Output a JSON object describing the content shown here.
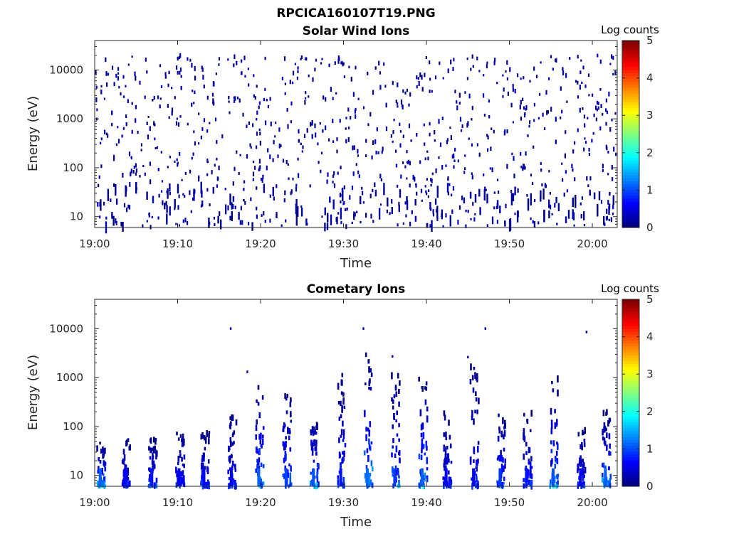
{
  "title": "RPCICA160107T19.PNG",
  "chart_data": [
    {
      "type": "heatmap",
      "title": "Solar Wind Ions",
      "xlabel": "Time",
      "ylabel": "Energy (eV)",
      "x_ticks": [
        "19:00",
        "19:10",
        "19:20",
        "19:30",
        "19:40",
        "19:50",
        "20:00"
      ],
      "x_range": [
        "19:00",
        "20:03"
      ],
      "y_scale": "log",
      "y_ticks": [
        "10",
        "100",
        "1000",
        "10000"
      ],
      "y_range": [
        6,
        40000
      ],
      "colorbar": {
        "label": "Log counts",
        "ticks": [
          "0",
          "1",
          "2",
          "3",
          "4",
          "5"
        ],
        "range": [
          0,
          5
        ],
        "colormap": "jet"
      },
      "description_of_values": "Sparse scattered pixels at log counts about 0-0.3 (dark blue) across all energies 6 eV to 20000 eV, with denser streaks below 40 eV; nearly all values near 0."
    },
    {
      "type": "heatmap",
      "title": "Cometary Ions",
      "xlabel": "Time",
      "ylabel": "Energy (eV)",
      "x_ticks": [
        "19:00",
        "19:10",
        "19:20",
        "19:30",
        "19:40",
        "19:50",
        "20:00"
      ],
      "x_range": [
        "19:00",
        "20:03"
      ],
      "y_scale": "log",
      "y_ticks": [
        "10",
        "100",
        "1000",
        "10000"
      ],
      "y_range": [
        6,
        40000
      ],
      "colorbar": {
        "label": "Log counts",
        "ticks": [
          "0",
          "1",
          "2",
          "3",
          "4",
          "5"
        ],
        "range": [
          0,
          5
        ],
        "colormap": "jet"
      },
      "burst_times_min": [
        0.5,
        3.5,
        6.7,
        10,
        13,
        16.3,
        19.6,
        22.9,
        26.2,
        29.5,
        32.7,
        36,
        39.3,
        42.2,
        45.5,
        48.7,
        51.9,
        55.1,
        58.4,
        61.4
      ],
      "burst_peak_energy_eV": [
        50,
        60,
        60,
        80,
        80,
        180,
        700,
        600,
        200,
        1200,
        3000,
        1200,
        1200,
        200,
        2500,
        200,
        200,
        1100,
        100,
        200
      ],
      "burst_peak_log_counts": [
        1.8,
        1.0,
        1.2,
        1.0,
        1.1,
        1.0,
        1.8,
        1.6,
        1.7,
        1.2,
        1.9,
        1.5,
        1.8,
        1.0,
        1.0,
        1.5,
        1.2,
        1.7,
        1.0,
        1.8
      ]
    }
  ]
}
